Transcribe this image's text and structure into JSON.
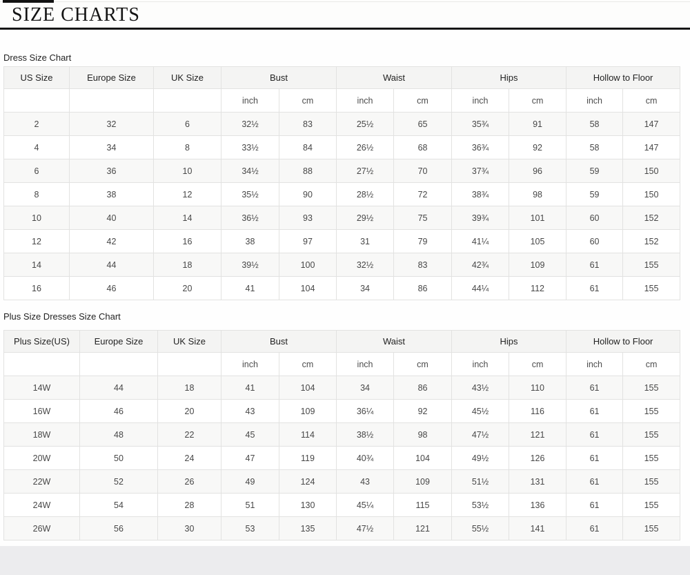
{
  "page": {
    "title": "SIZE CHARTS"
  },
  "units": {
    "inch": "inch",
    "cm": "cm"
  },
  "table1": {
    "label": "Dress Size Chart",
    "size_columns": [
      "US Size",
      "Europe Size",
      "UK Size"
    ],
    "measure_groups": [
      "Bust",
      "Waist",
      "Hips",
      "Hollow to Floor"
    ],
    "rows": [
      [
        "2",
        "32",
        "6",
        "32½",
        "83",
        "25½",
        "65",
        "35¾",
        "91",
        "58",
        "147"
      ],
      [
        "4",
        "34",
        "8",
        "33½",
        "84",
        "26½",
        "68",
        "36¾",
        "92",
        "58",
        "147"
      ],
      [
        "6",
        "36",
        "10",
        "34½",
        "88",
        "27½",
        "70",
        "37¾",
        "96",
        "59",
        "150"
      ],
      [
        "8",
        "38",
        "12",
        "35½",
        "90",
        "28½",
        "72",
        "38¾",
        "98",
        "59",
        "150"
      ],
      [
        "10",
        "40",
        "14",
        "36½",
        "93",
        "29½",
        "75",
        "39¾",
        "101",
        "60",
        "152"
      ],
      [
        "12",
        "42",
        "16",
        "38",
        "97",
        "31",
        "79",
        "41¼",
        "105",
        "60",
        "152"
      ],
      [
        "14",
        "44",
        "18",
        "39½",
        "100",
        "32½",
        "83",
        "42¾",
        "109",
        "61",
        "155"
      ],
      [
        "16",
        "46",
        "20",
        "41",
        "104",
        "34",
        "86",
        "44¼",
        "112",
        "61",
        "155"
      ]
    ]
  },
  "table2": {
    "label": "Plus Size Dresses Size Chart",
    "size_columns": [
      "Plus Size(US)",
      "Europe Size",
      "UK Size"
    ],
    "measure_groups": [
      "Bust",
      "Waist",
      "Hips",
      "Hollow to Floor"
    ],
    "rows": [
      [
        "14W",
        "44",
        "18",
        "41",
        "104",
        "34",
        "86",
        "43½",
        "110",
        "61",
        "155"
      ],
      [
        "16W",
        "46",
        "20",
        "43",
        "109",
        "36¼",
        "92",
        "45½",
        "116",
        "61",
        "155"
      ],
      [
        "18W",
        "48",
        "22",
        "45",
        "114",
        "38½",
        "98",
        "47½",
        "121",
        "61",
        "155"
      ],
      [
        "20W",
        "50",
        "24",
        "47",
        "119",
        "40¾",
        "104",
        "49½",
        "126",
        "61",
        "155"
      ],
      [
        "22W",
        "52",
        "26",
        "49",
        "124",
        "43",
        "109",
        "51½",
        "131",
        "61",
        "155"
      ],
      [
        "24W",
        "54",
        "28",
        "51",
        "130",
        "45¼",
        "115",
        "53½",
        "136",
        "61",
        "155"
      ],
      [
        "26W",
        "56",
        "30",
        "53",
        "135",
        "47½",
        "121",
        "55½",
        "141",
        "61",
        "155"
      ]
    ]
  }
}
